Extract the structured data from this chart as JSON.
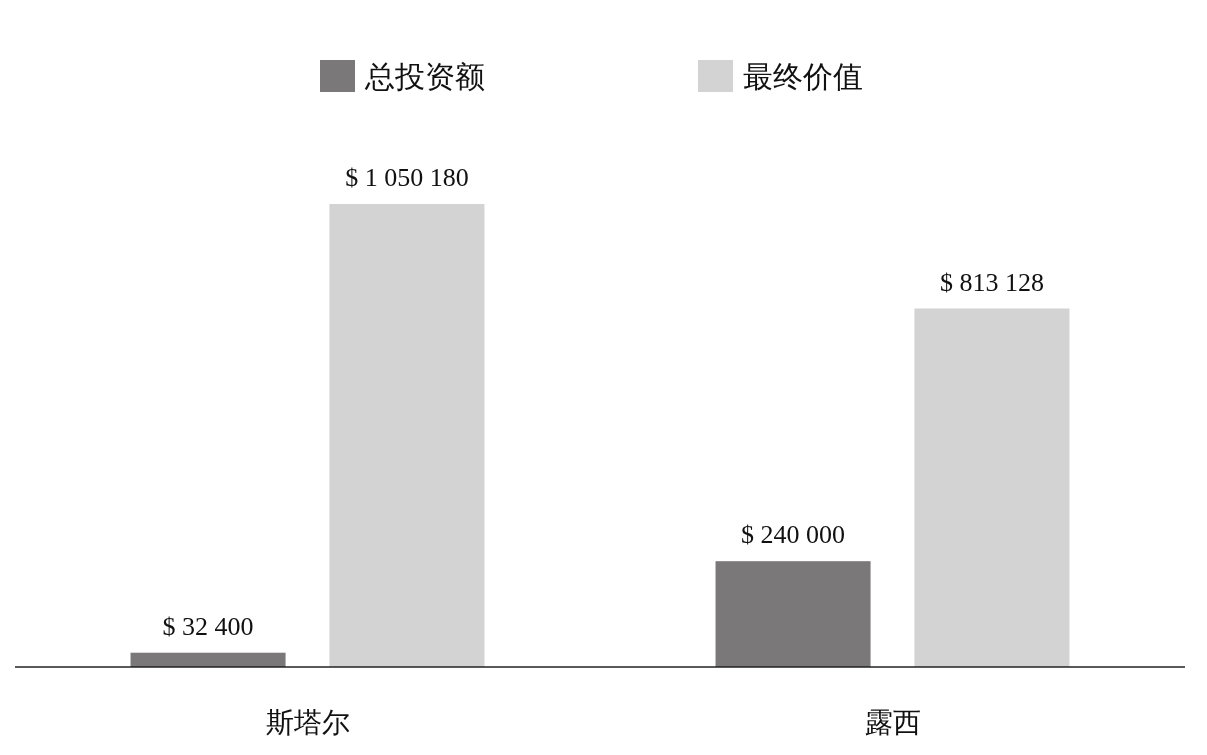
{
  "chart_data": {
    "type": "bar",
    "categories": [
      "斯塔尔",
      "露西"
    ],
    "series": [
      {
        "name": "总投资额",
        "color": "#7a7878",
        "values": [
          32400,
          240000
        ],
        "value_labels": [
          "$ 32 400",
          "$ 240 000"
        ]
      },
      {
        "name": "最终价值",
        "color": "#d3d3d3",
        "values": [
          1050180,
          813128
        ],
        "value_labels": [
          "$ 1 050 180",
          "$ 813 128"
        ]
      }
    ],
    "legend": "top",
    "grid": false
  }
}
